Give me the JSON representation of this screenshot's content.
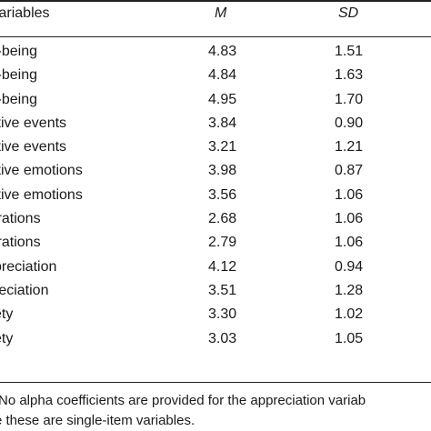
{
  "table": {
    "header": {
      "variables": "Variables",
      "m": "M",
      "sd": "SD"
    },
    "rows": [
      {
        "name": "l-being",
        "m": "4.83",
        "sd": "1.51"
      },
      {
        "name": "l-being",
        "m": "4.84",
        "sd": "1.63"
      },
      {
        "name": "l-being",
        "m": "4.95",
        "sd": "1.70"
      },
      {
        "name": "itive events",
        "m": "3.84",
        "sd": "0.90"
      },
      {
        "name": "itive events",
        "m": "3.21",
        "sd": "1.21"
      },
      {
        "name": "itive emotions",
        "m": "3.98",
        "sd": "0.87"
      },
      {
        "name": "itive emotions",
        "m": "3.56",
        "sd": "1.06"
      },
      {
        "name": "irations",
        "m": "2.68",
        "sd": "1.06"
      },
      {
        "name": "irations",
        "m": "2.79",
        "sd": "1.06"
      },
      {
        "name": "preciation",
        "m": "4.12",
        "sd": "0.94"
      },
      {
        "name": "reciation",
        "m": "3.51",
        "sd": "1.28"
      },
      {
        "name": "ety",
        "m": "3.30",
        "sd": "1.02"
      },
      {
        "name": "ety",
        "m": "3.03",
        "sd": "1.05"
      }
    ]
  },
  "note": {
    "line1": "No alpha coefficients are provided for the appreciation variab",
    "line2": "e these are single-item variables."
  }
}
